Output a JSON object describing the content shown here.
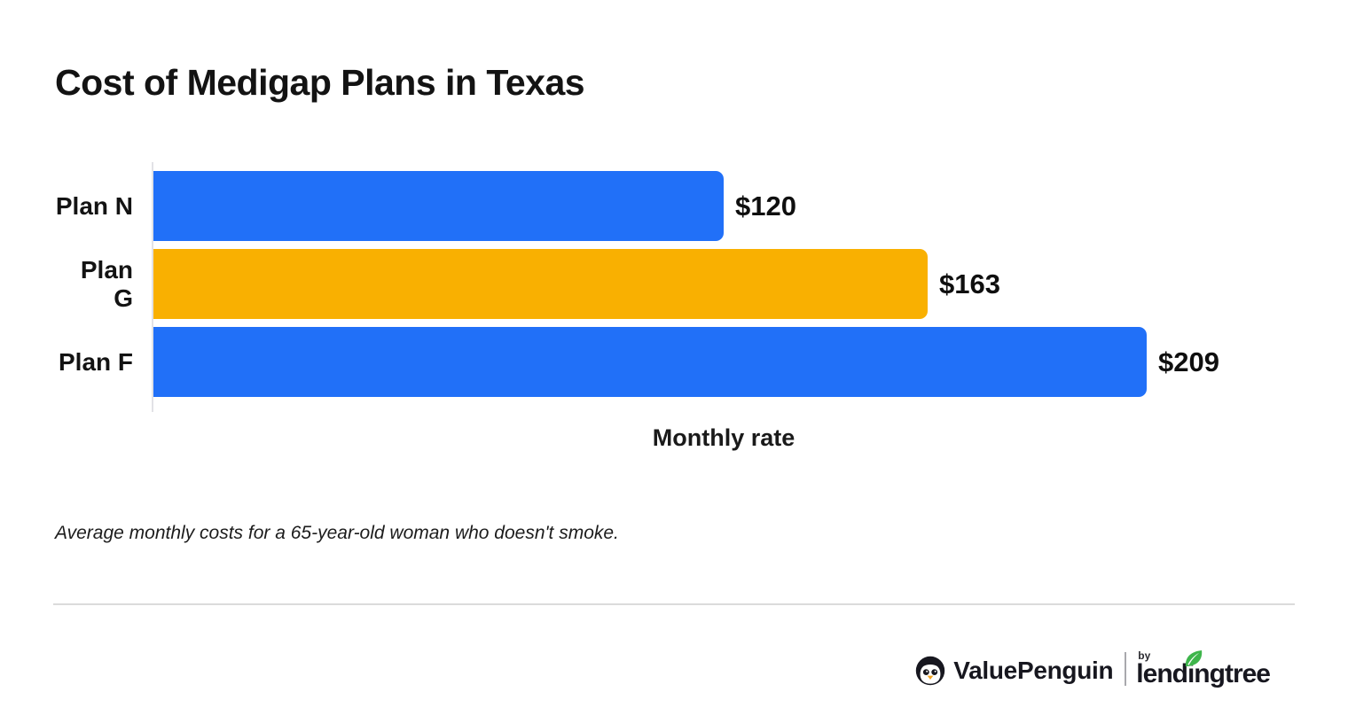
{
  "page": {
    "footnote": "Average monthly costs for a 65-year-old woman who doesn't smoke."
  },
  "chart_data": {
    "type": "bar",
    "orientation": "horizontal",
    "title": "Cost of Medigap Plans in Texas",
    "categories": [
      "Plan N",
      "Plan G",
      "Plan F"
    ],
    "values": [
      120,
      163,
      209
    ],
    "value_labels": [
      "$120",
      "$163",
      "$209"
    ],
    "bar_colors": [
      "#2170F8",
      "#F9B001",
      "#2170F8"
    ],
    "xlabel": "Monthly rate",
    "ylabel": "",
    "xlim": [
      0,
      209
    ],
    "grid": false,
    "legend": false,
    "note": "Average monthly costs for a 65-year-old woman who doesn't smoke."
  },
  "footer": {
    "brand": "ValuePenguin",
    "by_label": "by",
    "partner": "lendingtree",
    "leaf_color": "#3EB54B",
    "penguin_icon": "penguin-icon",
    "beak_color": "#F5A623"
  },
  "colors": {
    "bar_blue": "#2170F8",
    "bar_orange": "#F9B001",
    "text": "#131313",
    "axis_line": "#E2E2E6",
    "divider": "#DBDBDB"
  }
}
